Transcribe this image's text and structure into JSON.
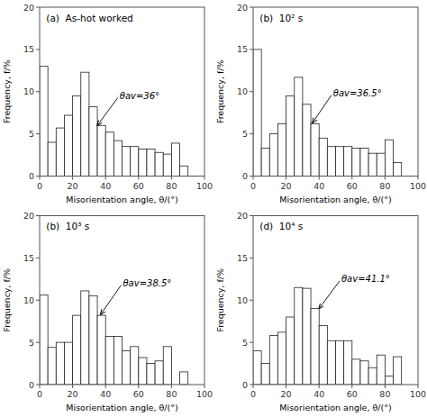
{
  "chart_data": [
    {
      "type": "histogram",
      "title": "(a)  As-hot worked",
      "xlabel": "Misorientation angle, θ/(°)",
      "ylabel": "Frequency, f/%",
      "bins": [
        0,
        5,
        10,
        15,
        20,
        25,
        30,
        35,
        40,
        45,
        50,
        55,
        60,
        65,
        70,
        75,
        80,
        85,
        90,
        95
      ],
      "values": [
        13.0,
        4.0,
        5.7,
        7.2,
        9.5,
        12.3,
        8.2,
        6.0,
        5.2,
        4.2,
        3.5,
        3.5,
        3.2,
        3.2,
        2.8,
        2.6,
        3.9,
        1.2,
        0.0
      ],
      "color": "white",
      "xlim": [
        0,
        100
      ],
      "xticks": [
        0,
        20,
        40,
        60,
        80,
        100
      ],
      "ylim": [
        0,
        20
      ],
      "yticks": [
        0,
        5,
        10,
        15,
        20
      ],
      "annotations": [
        {
          "text": "θav=36°",
          "x": 35,
          "y": 6.0,
          "text_x": 48,
          "text_y": 9.5
        }
      ]
    },
    {
      "type": "histogram",
      "title": "(b)  10² s",
      "xlabel": "Misorientation angle, θ/(°)",
      "ylabel": "Frequency, f/%",
      "bins": [
        0,
        5,
        10,
        15,
        20,
        25,
        30,
        35,
        40,
        45,
        50,
        55,
        60,
        65,
        70,
        75,
        80,
        85,
        90,
        95
      ],
      "values": [
        15.0,
        3.3,
        5.0,
        6.2,
        9.5,
        11.7,
        8.5,
        6.2,
        4.5,
        3.5,
        3.5,
        3.5,
        3.3,
        3.3,
        2.7,
        2.7,
        4.3,
        1.6,
        0.0
      ],
      "color": "white",
      "xlim": [
        0,
        100
      ],
      "xticks": [
        0,
        20,
        40,
        60,
        80,
        100
      ],
      "ylim": [
        0,
        20
      ],
      "yticks": [
        0,
        5,
        10,
        15,
        20
      ],
      "annotations": [
        {
          "text": "θav=36.5°",
          "x": 36,
          "y": 6.3,
          "text_x": 48,
          "text_y": 9.8
        }
      ]
    },
    {
      "type": "histogram",
      "title": "(b)  10³ s",
      "xlabel": "Misorientation angle, θ/(°)",
      "ylabel": "Frequency, f/%",
      "bins": [
        0,
        5,
        10,
        15,
        20,
        25,
        30,
        35,
        40,
        45,
        50,
        55,
        60,
        65,
        70,
        75,
        80,
        85,
        90,
        95
      ],
      "values": [
        10.6,
        4.4,
        5.0,
        5.0,
        8.2,
        11.1,
        10.5,
        8.2,
        5.7,
        5.7,
        4.0,
        4.5,
        3.2,
        2.5,
        2.8,
        4.5,
        0.0,
        1.5,
        0.0
      ],
      "color": "white",
      "xlim": [
        0,
        100
      ],
      "xticks": [
        0,
        20,
        40,
        60,
        80,
        100
      ],
      "ylim": [
        0,
        20
      ],
      "yticks": [
        0,
        5,
        10,
        15,
        20
      ],
      "annotations": [
        {
          "text": "θav=38.5°",
          "x": 37,
          "y": 8.3,
          "text_x": 50,
          "text_y": 12.0
        }
      ]
    },
    {
      "type": "histogram",
      "title": "(d)  10⁴ s",
      "xlabel": "Misorientation angle, θ/(°)",
      "ylabel": "Frequency, f/%",
      "bins": [
        0,
        5,
        10,
        15,
        20,
        25,
        30,
        35,
        40,
        45,
        50,
        55,
        60,
        65,
        70,
        75,
        80,
        85,
        90,
        95
      ],
      "values": [
        4.0,
        2.5,
        5.8,
        6.2,
        8.0,
        11.5,
        11.4,
        9.0,
        7.0,
        5.2,
        5.2,
        5.2,
        3.0,
        2.8,
        2.0,
        3.5,
        1.0,
        3.3,
        0.0
      ],
      "color": "white",
      "xlim": [
        0,
        100
      ],
      "xticks": [
        0,
        20,
        40,
        60,
        80,
        100
      ],
      "ylim": [
        0,
        20
      ],
      "yticks": [
        0,
        5,
        10,
        15,
        20
      ],
      "annotations": [
        {
          "text": "θav=41.1°",
          "x": 40,
          "y": 9.0,
          "text_x": 53,
          "text_y": 12.5
        }
      ]
    }
  ]
}
